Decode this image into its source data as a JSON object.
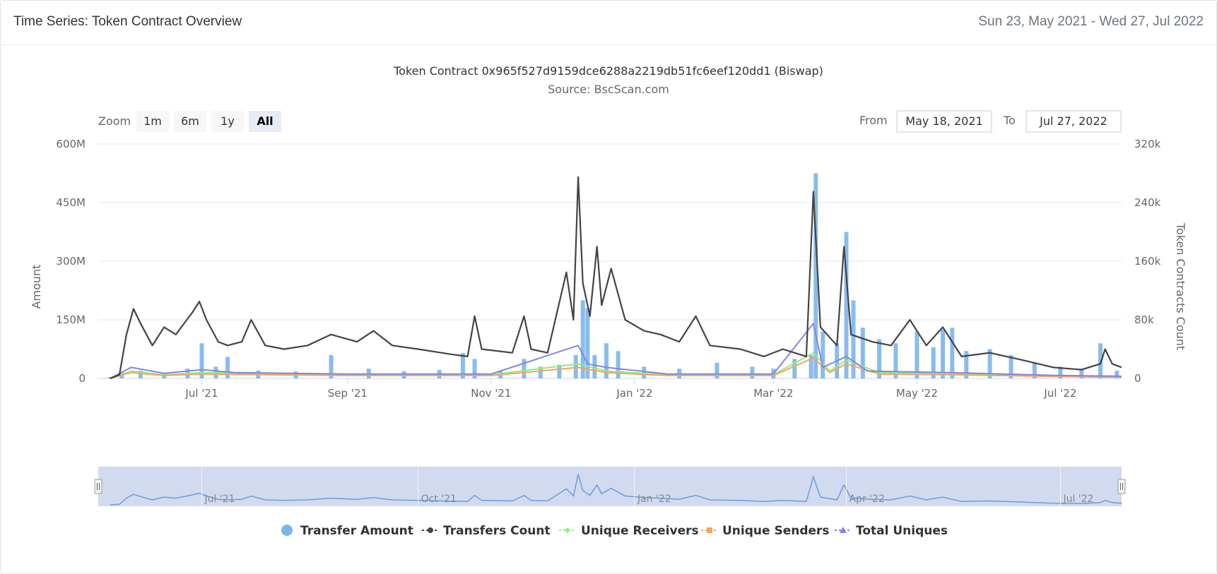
{
  "header": {
    "title": "Time Series: Token Contract Overview",
    "date_range": "Sun 23, May 2021 - Wed 27, Jul 2022"
  },
  "controls": {
    "zoom_label": "Zoom",
    "zoom_buttons": [
      "1m",
      "6m",
      "1y",
      "All"
    ],
    "active_zoom": "All",
    "from_label": "From",
    "from_value": "May 18, 2021",
    "to_label": "To",
    "to_value": "Jul 27, 2022"
  },
  "colors": {
    "transfer_amount": "#7cb5ec",
    "transfers_count": "#434348",
    "unique_receivers": "#90ed7d",
    "unique_senders": "#f7a35c",
    "total_uniques": "#8085e9",
    "navigator_fill": "#c9d4ec"
  },
  "chart_data": {
    "type": "bar+line",
    "title": "Token Contract 0x965f527d9159dce6288a2219db51fc6eef120dd1 (Biswap)",
    "subtitle": "Source: BscScan.com",
    "x_range": [
      "2021-05-18",
      "2022-07-27"
    ],
    "x_ticks": [
      {
        "date": "2021-07-01",
        "label": "Jul '21"
      },
      {
        "date": "2021-09-01",
        "label": "Sep '21"
      },
      {
        "date": "2021-11-01",
        "label": "Nov '21"
      },
      {
        "date": "2022-01-01",
        "label": "Jan '22"
      },
      {
        "date": "2022-03-01",
        "label": "Mar '22"
      },
      {
        "date": "2022-05-01",
        "label": "May '22"
      },
      {
        "date": "2022-07-01",
        "label": "Jul '22"
      }
    ],
    "y_left": {
      "title": "Amount",
      "min": 0,
      "max": 600000000,
      "ticks": [
        {
          "value": 0,
          "label": "0"
        },
        {
          "value": 150000000,
          "label": "150M"
        },
        {
          "value": 300000000,
          "label": "300M"
        },
        {
          "value": 450000000,
          "label": "450M"
        },
        {
          "value": 600000000,
          "label": "600M"
        }
      ]
    },
    "y_right": {
      "title": "Token Contracts Count",
      "min": 0,
      "max": 320000,
      "ticks": [
        {
          "value": 0,
          "label": "0"
        },
        {
          "value": 80000,
          "label": "80k"
        },
        {
          "value": 160000,
          "label": "160k"
        },
        {
          "value": 240000,
          "label": "240k"
        },
        {
          "value": 320000,
          "label": "320k"
        }
      ]
    },
    "grid": true,
    "legend_position": "bottom-center",
    "navigator_ticks": [
      {
        "date": "2021-07-01",
        "label": "Jul '21"
      },
      {
        "date": "2021-10-01",
        "label": "Oct '21"
      },
      {
        "date": "2022-01-01",
        "label": "Jan '22"
      },
      {
        "date": "2022-04-01",
        "label": "Apr '22"
      },
      {
        "date": "2022-07-01",
        "label": "Jul '22"
      }
    ],
    "series": [
      {
        "name": "Transfer Amount",
        "type": "bar",
        "axis": "left",
        "points": [
          [
            "2021-05-23",
            3000000
          ],
          [
            "2021-05-28",
            15000000
          ],
          [
            "2021-06-05",
            20000000
          ],
          [
            "2021-06-15",
            15000000
          ],
          [
            "2021-06-25",
            25000000
          ],
          [
            "2021-07-01",
            90000000
          ],
          [
            "2021-07-07",
            30000000
          ],
          [
            "2021-07-12",
            55000000
          ],
          [
            "2021-07-25",
            20000000
          ],
          [
            "2021-08-10",
            18000000
          ],
          [
            "2021-08-25",
            60000000
          ],
          [
            "2021-09-10",
            25000000
          ],
          [
            "2021-09-25",
            18000000
          ],
          [
            "2021-10-10",
            22000000
          ],
          [
            "2021-10-20",
            65000000
          ],
          [
            "2021-10-25",
            50000000
          ],
          [
            "2021-11-05",
            20000000
          ],
          [
            "2021-11-15",
            50000000
          ],
          [
            "2021-11-22",
            30000000
          ],
          [
            "2021-11-30",
            35000000
          ],
          [
            "2021-12-07",
            60000000
          ],
          [
            "2021-12-10",
            200000000
          ],
          [
            "2021-12-12",
            180000000
          ],
          [
            "2021-12-15",
            60000000
          ],
          [
            "2021-12-20",
            90000000
          ],
          [
            "2021-12-25",
            70000000
          ],
          [
            "2022-01-05",
            30000000
          ],
          [
            "2022-01-20",
            25000000
          ],
          [
            "2022-02-05",
            40000000
          ],
          [
            "2022-02-20",
            30000000
          ],
          [
            "2022-03-01",
            25000000
          ],
          [
            "2022-03-10",
            50000000
          ],
          [
            "2022-03-17",
            60000000
          ],
          [
            "2022-03-19",
            525000000
          ],
          [
            "2022-03-22",
            120000000
          ],
          [
            "2022-03-28",
            90000000
          ],
          [
            "2022-04-01",
            375000000
          ],
          [
            "2022-04-04",
            200000000
          ],
          [
            "2022-04-08",
            130000000
          ],
          [
            "2022-04-15",
            100000000
          ],
          [
            "2022-04-22",
            90000000
          ],
          [
            "2022-05-01",
            120000000
          ],
          [
            "2022-05-08",
            80000000
          ],
          [
            "2022-05-12",
            125000000
          ],
          [
            "2022-05-16",
            130000000
          ],
          [
            "2022-05-22",
            70000000
          ],
          [
            "2022-06-01",
            75000000
          ],
          [
            "2022-06-10",
            60000000
          ],
          [
            "2022-06-20",
            40000000
          ],
          [
            "2022-07-01",
            30000000
          ],
          [
            "2022-07-10",
            25000000
          ],
          [
            "2022-07-18",
            90000000
          ],
          [
            "2022-07-25",
            20000000
          ]
        ]
      },
      {
        "name": "Transfers Count",
        "type": "line",
        "axis": "right",
        "points": [
          [
            "2021-05-23",
            0
          ],
          [
            "2021-05-27",
            5000
          ],
          [
            "2021-05-30",
            60000
          ],
          [
            "2021-06-02",
            95000
          ],
          [
            "2021-06-05",
            75000
          ],
          [
            "2021-06-10",
            45000
          ],
          [
            "2021-06-15",
            70000
          ],
          [
            "2021-06-20",
            60000
          ],
          [
            "2021-06-27",
            90000
          ],
          [
            "2021-06-30",
            105000
          ],
          [
            "2021-07-03",
            80000
          ],
          [
            "2021-07-08",
            50000
          ],
          [
            "2021-07-12",
            45000
          ],
          [
            "2021-07-18",
            50000
          ],
          [
            "2021-07-22",
            80000
          ],
          [
            "2021-07-28",
            45000
          ],
          [
            "2021-08-05",
            40000
          ],
          [
            "2021-08-15",
            45000
          ],
          [
            "2021-08-25",
            60000
          ],
          [
            "2021-09-05",
            50000
          ],
          [
            "2021-09-12",
            65000
          ],
          [
            "2021-09-20",
            45000
          ],
          [
            "2021-10-01",
            40000
          ],
          [
            "2021-10-15",
            33000
          ],
          [
            "2021-10-22",
            30000
          ],
          [
            "2021-10-25",
            85000
          ],
          [
            "2021-10-28",
            40000
          ],
          [
            "2021-11-10",
            35000
          ],
          [
            "2021-11-15",
            85000
          ],
          [
            "2021-11-18",
            40000
          ],
          [
            "2021-11-25",
            35000
          ],
          [
            "2021-12-03",
            145000
          ],
          [
            "2021-12-06",
            80000
          ],
          [
            "2021-12-08",
            275000
          ],
          [
            "2021-12-10",
            130000
          ],
          [
            "2021-12-13",
            85000
          ],
          [
            "2021-12-16",
            180000
          ],
          [
            "2021-12-18",
            100000
          ],
          [
            "2021-12-22",
            150000
          ],
          [
            "2021-12-28",
            80000
          ],
          [
            "2022-01-05",
            65000
          ],
          [
            "2022-01-12",
            60000
          ],
          [
            "2022-01-20",
            50000
          ],
          [
            "2022-01-27",
            85000
          ],
          [
            "2022-02-02",
            45000
          ],
          [
            "2022-02-15",
            40000
          ],
          [
            "2022-02-25",
            30000
          ],
          [
            "2022-03-05",
            40000
          ],
          [
            "2022-03-15",
            30000
          ],
          [
            "2022-03-18",
            255000
          ],
          [
            "2022-03-21",
            70000
          ],
          [
            "2022-03-28",
            45000
          ],
          [
            "2022-03-31",
            180000
          ],
          [
            "2022-04-03",
            60000
          ],
          [
            "2022-04-12",
            50000
          ],
          [
            "2022-04-20",
            45000
          ],
          [
            "2022-04-28",
            80000
          ],
          [
            "2022-05-05",
            45000
          ],
          [
            "2022-05-12",
            70000
          ],
          [
            "2022-05-20",
            30000
          ],
          [
            "2022-06-01",
            35000
          ],
          [
            "2022-06-15",
            25000
          ],
          [
            "2022-06-28",
            15000
          ],
          [
            "2022-07-10",
            12000
          ],
          [
            "2022-07-18",
            20000
          ],
          [
            "2022-07-20",
            40000
          ],
          [
            "2022-07-23",
            20000
          ],
          [
            "2022-07-27",
            15000
          ]
        ]
      },
      {
        "name": "Unique Receivers",
        "type": "line",
        "axis": "right",
        "points": [
          [
            "2021-05-23",
            0
          ],
          [
            "2021-06-01",
            10000
          ],
          [
            "2021-06-15",
            5000
          ],
          [
            "2021-07-01",
            8000
          ],
          [
            "2021-09-01",
            5000
          ],
          [
            "2021-11-01",
            5000
          ],
          [
            "2021-12-08",
            20000
          ],
          [
            "2021-12-20",
            10000
          ],
          [
            "2022-01-15",
            5000
          ],
          [
            "2022-03-01",
            5000
          ],
          [
            "2022-03-18",
            35000
          ],
          [
            "2022-03-25",
            10000
          ],
          [
            "2022-04-01",
            25000
          ],
          [
            "2022-04-15",
            8000
          ],
          [
            "2022-05-15",
            6000
          ],
          [
            "2022-07-01",
            3000
          ],
          [
            "2022-07-27",
            2000
          ]
        ]
      },
      {
        "name": "Unique Senders",
        "type": "line",
        "axis": "right",
        "points": [
          [
            "2021-05-23",
            0
          ],
          [
            "2021-06-01",
            8000
          ],
          [
            "2021-06-15",
            4000
          ],
          [
            "2021-07-01",
            6000
          ],
          [
            "2021-09-01",
            4000
          ],
          [
            "2021-11-01",
            4000
          ],
          [
            "2021-12-08",
            15000
          ],
          [
            "2021-12-20",
            8000
          ],
          [
            "2022-01-15",
            4000
          ],
          [
            "2022-03-01",
            4000
          ],
          [
            "2022-03-18",
            28000
          ],
          [
            "2022-03-25",
            8000
          ],
          [
            "2022-04-01",
            20000
          ],
          [
            "2022-04-15",
            6000
          ],
          [
            "2022-05-15",
            5000
          ],
          [
            "2022-07-01",
            2500
          ],
          [
            "2022-07-27",
            1500
          ]
        ]
      },
      {
        "name": "Total Uniques",
        "type": "line",
        "axis": "right",
        "points": [
          [
            "2021-05-23",
            0
          ],
          [
            "2021-06-01",
            15000
          ],
          [
            "2021-06-15",
            7000
          ],
          [
            "2021-07-01",
            12000
          ],
          [
            "2021-07-15",
            8000
          ],
          [
            "2021-09-01",
            6000
          ],
          [
            "2021-11-01",
            6000
          ],
          [
            "2021-12-08",
            45000
          ],
          [
            "2021-12-12",
            20000
          ],
          [
            "2021-12-20",
            15000
          ],
          [
            "2022-01-15",
            6000
          ],
          [
            "2022-03-01",
            6000
          ],
          [
            "2022-03-18",
            75000
          ],
          [
            "2022-03-22",
            15000
          ],
          [
            "2022-04-01",
            30000
          ],
          [
            "2022-04-10",
            10000
          ],
          [
            "2022-05-15",
            8000
          ],
          [
            "2022-07-01",
            4000
          ],
          [
            "2022-07-27",
            3000
          ]
        ]
      }
    ]
  }
}
